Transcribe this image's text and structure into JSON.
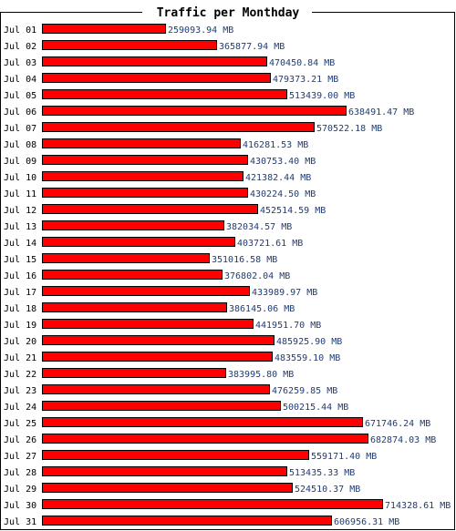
{
  "chart_data": {
    "type": "bar",
    "orientation": "horizontal",
    "title": "Traffic per Monthday",
    "unit": "MB",
    "categories": [
      "Jul 01",
      "Jul 02",
      "Jul 03",
      "Jul 04",
      "Jul 05",
      "Jul 06",
      "Jul 07",
      "Jul 08",
      "Jul 09",
      "Jul 10",
      "Jul 11",
      "Jul 12",
      "Jul 13",
      "Jul 14",
      "Jul 15",
      "Jul 16",
      "Jul 17",
      "Jul 18",
      "Jul 19",
      "Jul 20",
      "Jul 21",
      "Jul 22",
      "Jul 23",
      "Jul 24",
      "Jul 25",
      "Jul 26",
      "Jul 27",
      "Jul 28",
      "Jul 29",
      "Jul 30",
      "Jul 31"
    ],
    "values": [
      259093.94,
      365877.94,
      470450.84,
      479373.21,
      513439.0,
      638491.47,
      570522.18,
      416281.53,
      430753.4,
      421382.44,
      430224.5,
      452514.59,
      382034.57,
      403721.61,
      351016.58,
      376802.04,
      433989.97,
      386145.06,
      441951.7,
      485925.9,
      483559.1,
      383995.8,
      476259.85,
      500215.44,
      671746.24,
      682874.03,
      559171.4,
      513435.33,
      524510.37,
      714328.61,
      606956.31
    ],
    "value_labels": [
      "259093.94 MB",
      "365877.94 MB",
      "470450.84 MB",
      "479373.21 MB",
      "513439.00 MB",
      "638491.47 MB",
      "570522.18 MB",
      "416281.53 MB",
      "430753.40 MB",
      "421382.44 MB",
      "430224.50 MB",
      "452514.59 MB",
      "382034.57 MB",
      "403721.61 MB",
      "351016.58 MB",
      "376802.04 MB",
      "433989.97 MB",
      "386145.06 MB",
      "441951.70 MB",
      "485925.90 MB",
      "483559.10 MB",
      "383995.80 MB",
      "476259.85 MB",
      "500215.44 MB",
      "671746.24 MB",
      "682874.03 MB",
      "559171.40 MB",
      "513435.33 MB",
      "524510.37 MB",
      "714328.61 MB",
      "606956.31 MB"
    ],
    "xlim": [
      0,
      714328.61
    ],
    "grid": false,
    "colors": {
      "bar": "#ff0000",
      "bar_border": "#000000",
      "value_label": "#1f3c7a",
      "frame": "#000000"
    }
  }
}
